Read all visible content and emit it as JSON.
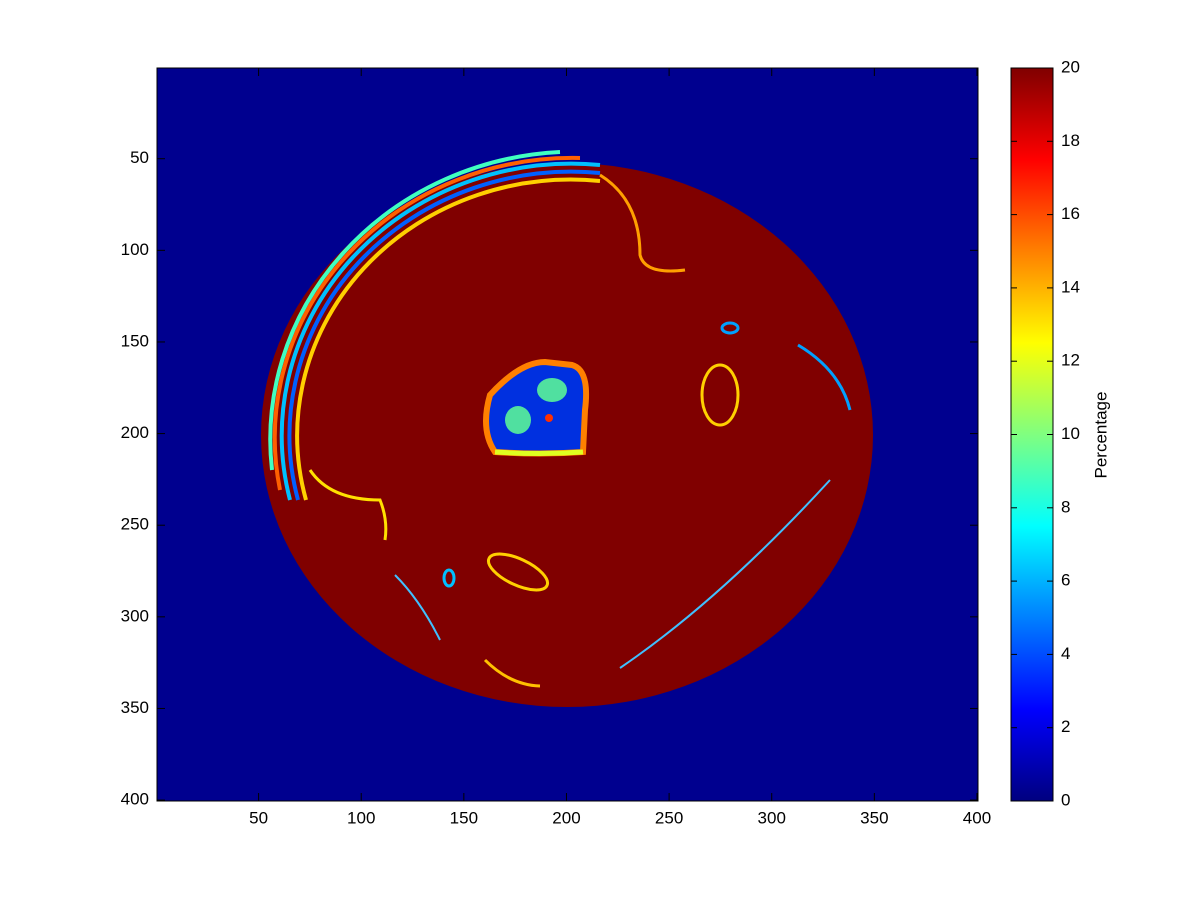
{
  "chart_data": {
    "type": "image",
    "colormap": "jet",
    "xlim": [
      0.5,
      400.5
    ],
    "ylim": [
      0.5,
      400.5
    ],
    "y_reversed": true,
    "xticks": [
      50,
      100,
      150,
      200,
      250,
      300,
      350,
      400
    ],
    "yticks": [
      50,
      100,
      150,
      200,
      250,
      300,
      350,
      400
    ],
    "colorbar": {
      "label": "Percentage",
      "clim": [
        0,
        20
      ],
      "ticks": [
        0,
        2,
        4,
        6,
        8,
        10,
        12,
        14,
        16,
        18,
        20
      ]
    }
  }
}
